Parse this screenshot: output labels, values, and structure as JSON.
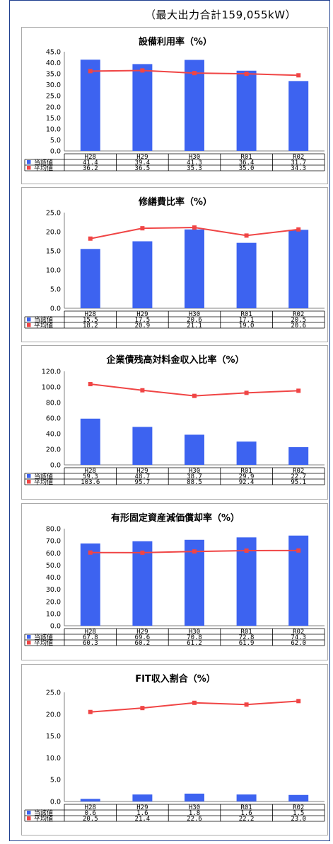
{
  "subtitle": "（最大出力合計159,055kW）",
  "legend": {
    "current": "当該値",
    "average": "平均値"
  },
  "colors": {
    "bar": "#3d63f0",
    "line": "#f04545",
    "frame": "#1f3f8f"
  },
  "chart_data": [
    {
      "type": "bar",
      "title": "設備利用率（%）",
      "categories": [
        "H28",
        "H29",
        "H30",
        "R01",
        "R02"
      ],
      "ylim": [
        0,
        45
      ],
      "yticks": [
        "45.0",
        "40.0",
        "35.0",
        "30.0",
        "25.0",
        "20.0",
        "15.0",
        "10.0",
        "5.0",
        "0.0"
      ],
      "series": [
        {
          "name": "当該値",
          "type": "bar",
          "values": [
            41.4,
            39.4,
            41.3,
            36.4,
            31.7
          ],
          "labels": [
            "41.4",
            "39.4",
            "41.3",
            "36.4",
            "31.7"
          ]
        },
        {
          "name": "平均値",
          "type": "line",
          "values": [
            36.2,
            36.5,
            35.3,
            35.0,
            34.3
          ],
          "labels": [
            "36.2",
            "36.5",
            "35.3",
            "35.0",
            "34.3"
          ]
        }
      ]
    },
    {
      "type": "bar",
      "title": "修繕費比率（%）",
      "categories": [
        "H28",
        "H29",
        "H30",
        "R01",
        "R02"
      ],
      "ylim": [
        0,
        25
      ],
      "yticks": [
        "25.0",
        "20.0",
        "15.0",
        "10.0",
        "5.0",
        "0.0"
      ],
      "series": [
        {
          "name": "当該値",
          "type": "bar",
          "values": [
            15.5,
            17.5,
            20.6,
            17.1,
            20.5
          ],
          "labels": [
            "15.5",
            "17.5",
            "20.6",
            "17.1",
            "20.5"
          ]
        },
        {
          "name": "平均値",
          "type": "line",
          "values": [
            18.2,
            20.9,
            21.1,
            19.0,
            20.6
          ],
          "labels": [
            "18.2",
            "20.9",
            "21.1",
            "19.0",
            "20.6"
          ]
        }
      ]
    },
    {
      "type": "bar",
      "title": "企業債残高対料金収入比率（%）",
      "categories": [
        "H28",
        "H29",
        "H30",
        "R01",
        "R02"
      ],
      "ylim": [
        0,
        120
      ],
      "yticks": [
        "120.0",
        "100.0",
        "80.0",
        "60.0",
        "40.0",
        "20.0",
        "0.0"
      ],
      "series": [
        {
          "name": "当該値",
          "type": "bar",
          "values": [
            59.3,
            48.7,
            38.7,
            29.9,
            22.7
          ],
          "labels": [
            "59.3",
            "48.7",
            "38.7",
            "29.9",
            "22.7"
          ]
        },
        {
          "name": "平均値",
          "type": "line",
          "values": [
            103.6,
            95.7,
            88.5,
            92.4,
            95.1
          ],
          "labels": [
            "103.6",
            "95.7",
            "88.5",
            "92.4",
            "95.1"
          ]
        }
      ]
    },
    {
      "type": "bar",
      "title": "有形固定資産減価償却率（%）",
      "categories": [
        "H28",
        "H29",
        "H30",
        "R01",
        "R02"
      ],
      "ylim": [
        0,
        80
      ],
      "yticks": [
        "80.0",
        "70.0",
        "60.0",
        "50.0",
        "40.0",
        "30.0",
        "20.0",
        "10.0",
        "0.0"
      ],
      "series": [
        {
          "name": "当該値",
          "type": "bar",
          "values": [
            67.8,
            69.6,
            70.8,
            72.8,
            74.3
          ],
          "labels": [
            "67.8",
            "69.6",
            "70.8",
            "72.8",
            "74.3"
          ]
        },
        {
          "name": "平均値",
          "type": "line",
          "values": [
            60.3,
            60.2,
            61.2,
            61.9,
            62.0
          ],
          "labels": [
            "60.3",
            "60.2",
            "61.2",
            "61.9",
            "62.0"
          ]
        }
      ]
    },
    {
      "type": "bar",
      "title": "FIT収入割合（%）",
      "categories": [
        "H28",
        "H29",
        "H30",
        "R01",
        "R02"
      ],
      "ylim": [
        0,
        25
      ],
      "yticks": [
        "25.0",
        "20.0",
        "15.0",
        "10.0",
        "5.0",
        "0.0"
      ],
      "series": [
        {
          "name": "当該値",
          "type": "bar",
          "values": [
            0.6,
            1.6,
            1.8,
            1.6,
            1.5
          ],
          "labels": [
            "0.6",
            "1.6",
            "1.8",
            "1.6",
            "1.5"
          ]
        },
        {
          "name": "平均値",
          "type": "line",
          "values": [
            20.5,
            21.4,
            22.6,
            22.2,
            23.0
          ],
          "labels": [
            "20.5",
            "21.4",
            "22.6",
            "22.2",
            "23.0"
          ]
        }
      ]
    }
  ]
}
